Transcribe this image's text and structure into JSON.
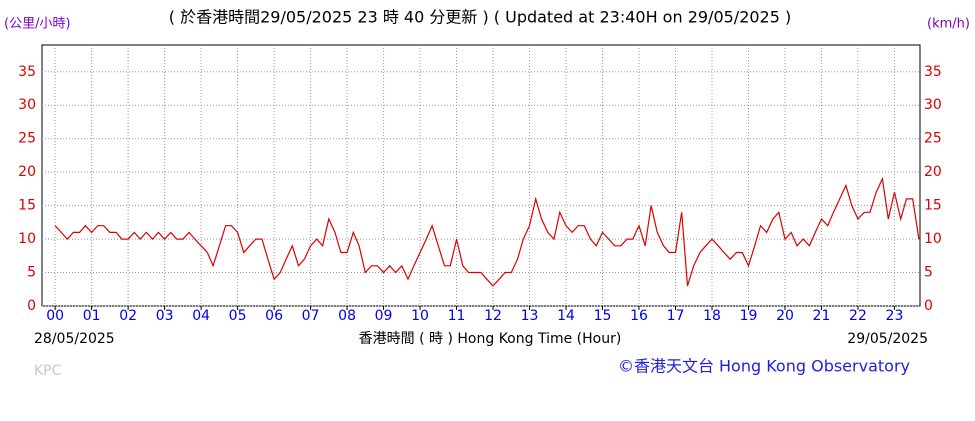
{
  "chart_data": {
    "type": "line",
    "title": "( 於香港時間29/05/2025 23 時 40 分更新 ) ( Updated at 23:40H on 29/05/2025 )",
    "y_label": "(公里/小時)",
    "y2_label": "(km/h)",
    "x_label": "香港時間 ( 時 ) Hong Kong Time (Hour)",
    "start_date": "28/05/2025",
    "end_date": "29/05/2025",
    "station": "KPC",
    "credit": "©香港天文台 Hong Kong Observatory",
    "xlim": [
      -0.36,
      23.7
    ],
    "ylim": [
      0,
      39
    ],
    "xticks": [
      {
        "value": 0,
        "label": "00"
      },
      {
        "value": 1,
        "label": "01"
      },
      {
        "value": 2,
        "label": "02"
      },
      {
        "value": 3,
        "label": "03"
      },
      {
        "value": 4,
        "label": "04"
      },
      {
        "value": 5,
        "label": "05"
      },
      {
        "value": 6,
        "label": "06"
      },
      {
        "value": 7,
        "label": "07"
      },
      {
        "value": 8,
        "label": "08"
      },
      {
        "value": 9,
        "label": "09"
      },
      10,
      11,
      12,
      13,
      14,
      15,
      16,
      17,
      18,
      19,
      20,
      21,
      22,
      23
    ],
    "yticks": [
      0,
      5,
      10,
      15,
      20,
      25,
      30,
      35
    ],
    "grid": true,
    "series": [
      {
        "color": "#dd0000",
        "x": [
          0,
          0.17,
          0.33,
          0.5,
          0.67,
          0.83,
          1,
          1.17,
          1.33,
          1.5,
          1.67,
          1.83,
          2,
          2.17,
          2.33,
          2.5,
          2.67,
          2.83,
          3,
          3.17,
          3.33,
          3.5,
          3.67,
          3.83,
          4,
          4.17,
          4.33,
          4.5,
          4.67,
          4.83,
          5,
          5.17,
          5.33,
          5.5,
          5.67,
          5.83,
          6,
          6.17,
          6.33,
          6.5,
          6.67,
          6.83,
          7,
          7.17,
          7.33,
          7.5,
          7.67,
          7.83,
          8,
          8.17,
          8.33,
          8.5,
          8.67,
          8.83,
          9,
          9.17,
          9.33,
          9.5,
          9.67,
          9.83,
          10,
          10.17,
          10.33,
          10.5,
          10.67,
          10.83,
          11,
          11.17,
          11.33,
          11.5,
          11.67,
          11.83,
          12,
          12.17,
          12.33,
          12.5,
          12.67,
          12.83,
          13,
          13.17,
          13.33,
          13.5,
          13.67,
          13.83,
          14,
          14.17,
          14.33,
          14.5,
          14.67,
          14.83,
          15,
          15.17,
          15.33,
          15.5,
          15.67,
          15.83,
          16,
          16.17,
          16.33,
          16.5,
          16.67,
          16.83,
          17,
          17.17,
          17.33,
          17.5,
          17.67,
          17.83,
          18,
          18.17,
          18.33,
          18.5,
          18.67,
          18.83,
          19,
          19.17,
          19.33,
          19.5,
          19.67,
          19.83,
          20,
          20.17,
          20.33,
          20.5,
          20.67,
          20.83,
          21,
          21.17,
          21.33,
          21.5,
          21.67,
          21.83,
          22,
          22.17,
          22.33,
          22.5,
          22.67,
          22.83,
          23,
          23.17,
          23.33,
          23.5,
          23.67
        ],
        "values": [
          12,
          11,
          10,
          11,
          11,
          12,
          11,
          12,
          12,
          11,
          11,
          10,
          10,
          11,
          10,
          11,
          10,
          11,
          10,
          11,
          10,
          10,
          11,
          10,
          9,
          8,
          6,
          9,
          12,
          12,
          11,
          8,
          9,
          10,
          10,
          7,
          4,
          5,
          7,
          9,
          6,
          7,
          9,
          10,
          9,
          13,
          11,
          8,
          8,
          11,
          9,
          5,
          6,
          6,
          5,
          6,
          5,
          6,
          4,
          6,
          8,
          10,
          12,
          9,
          6,
          6,
          10,
          6,
          5,
          5,
          5,
          4,
          3,
          4,
          5,
          5,
          7,
          10,
          12,
          16,
          13,
          11,
          10,
          14,
          12,
          11,
          12,
          12,
          10,
          9,
          11,
          10,
          9,
          9,
          10,
          10,
          12,
          9,
          15,
          11,
          9,
          8,
          8,
          14,
          3,
          6,
          8,
          9,
          10,
          9,
          8,
          7,
          8,
          8,
          6,
          9,
          12,
          11,
          13,
          14,
          10,
          11,
          9,
          10,
          9,
          11,
          13,
          12,
          14,
          16,
          18,
          15,
          13,
          14,
          14,
          17,
          19,
          13,
          17,
          13,
          16,
          16,
          10
        ]
      }
    ]
  }
}
